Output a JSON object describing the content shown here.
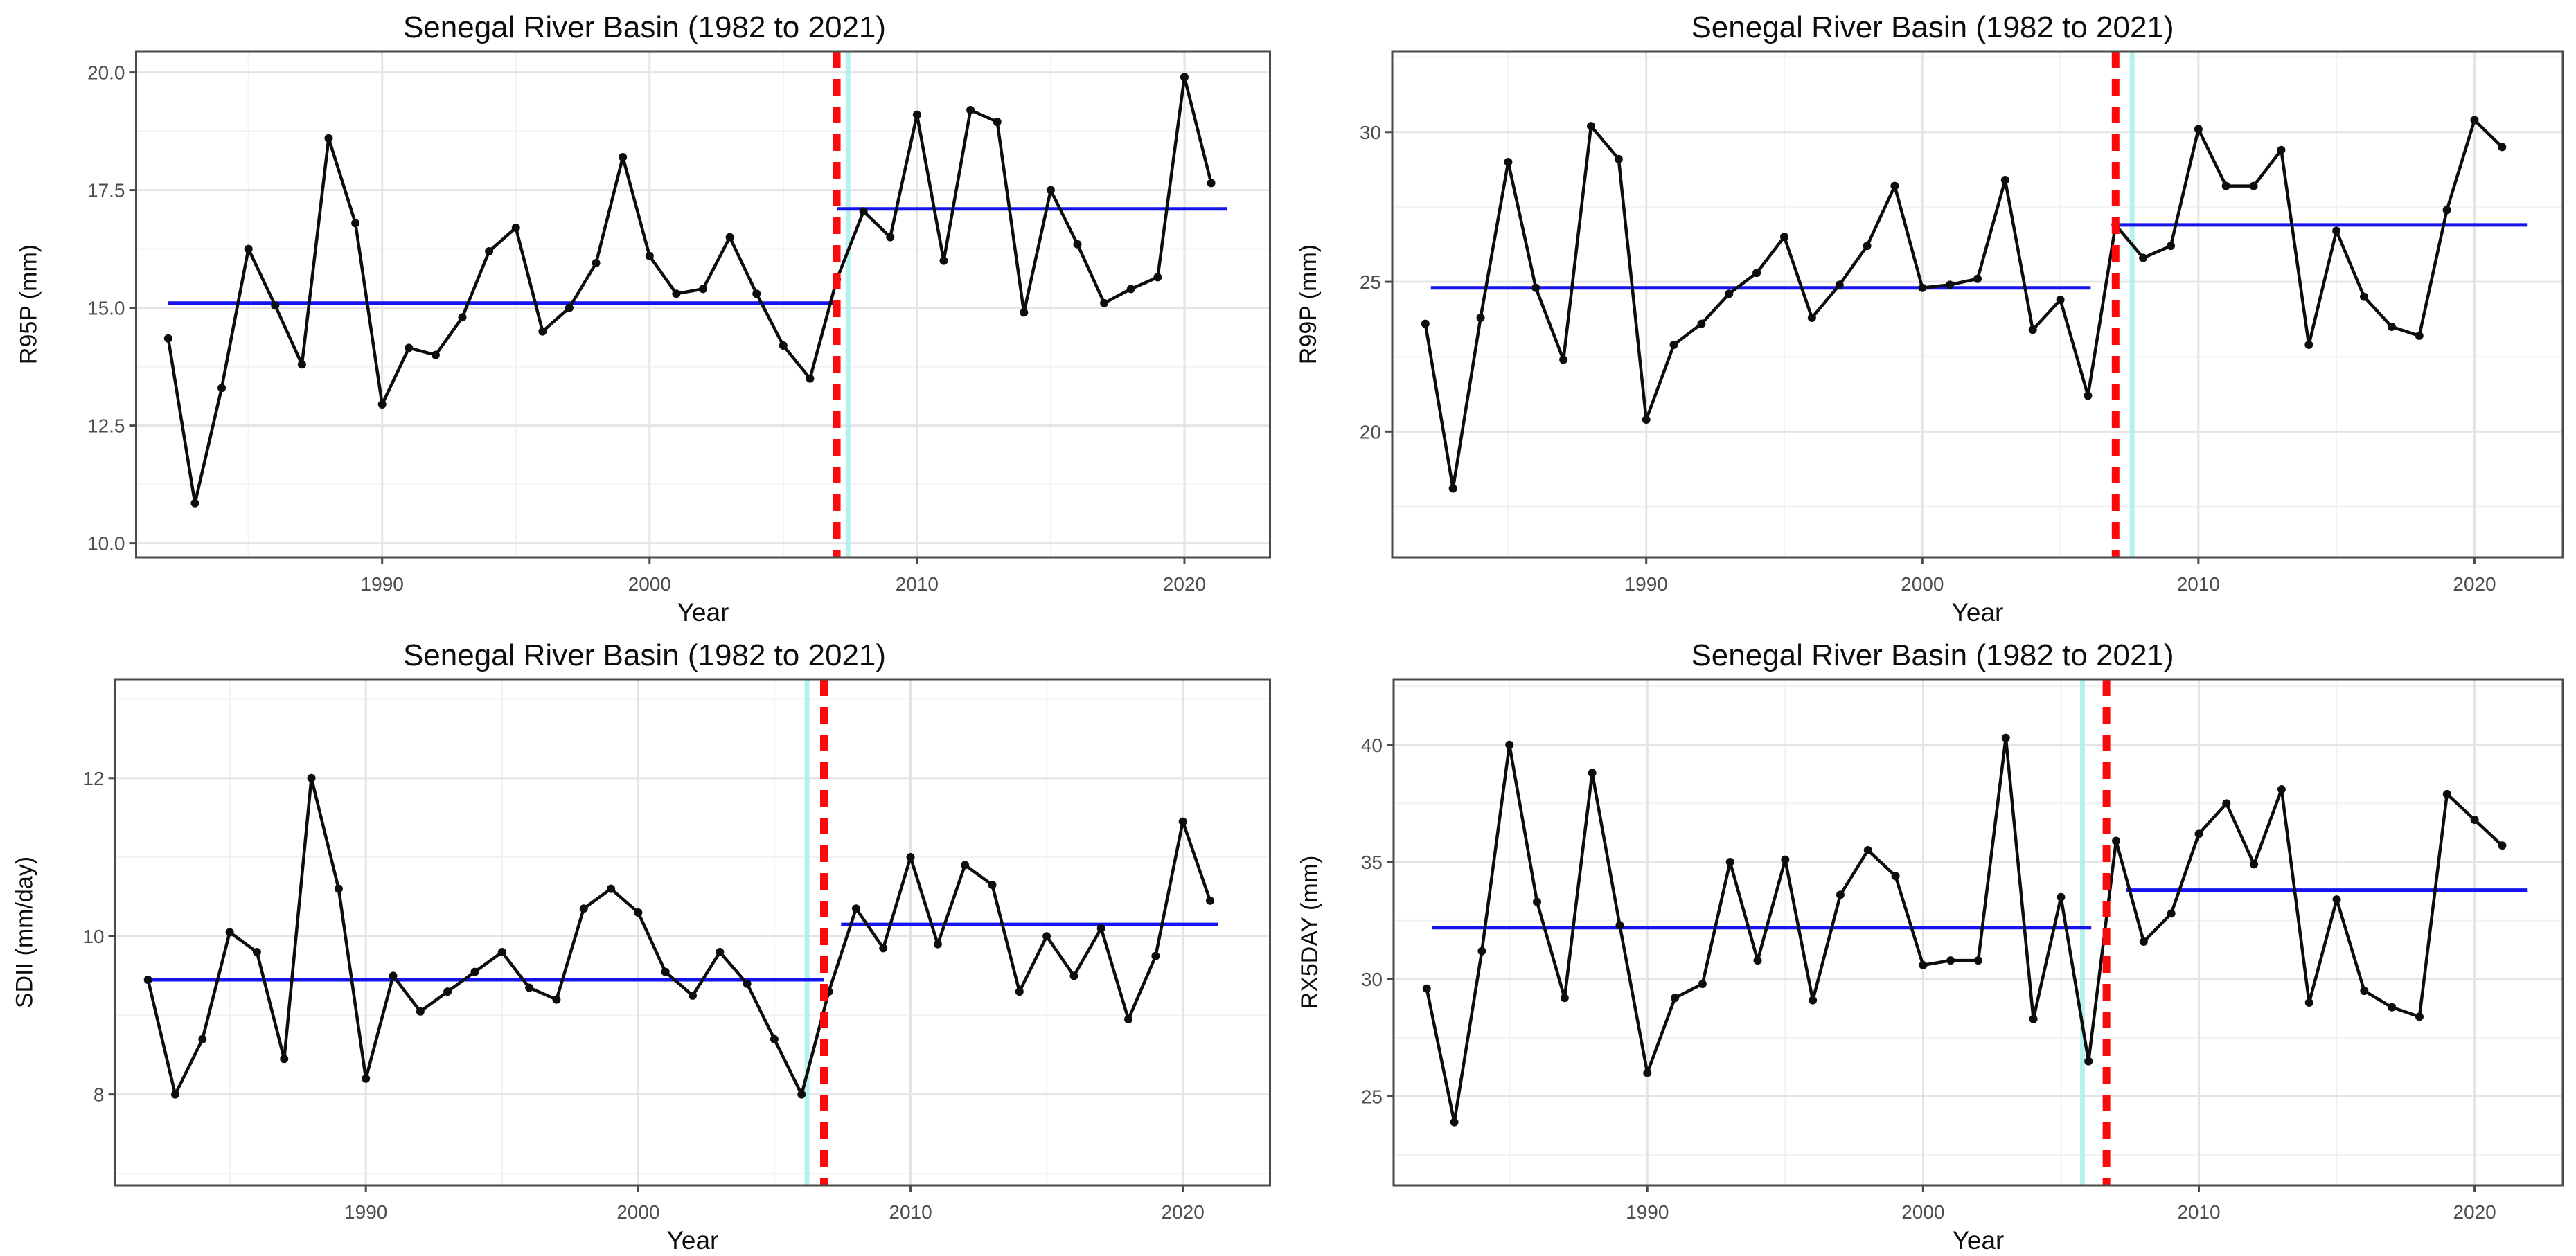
{
  "page": {
    "background": "#ffffff"
  },
  "style": {
    "panel_bg": "#ffffff",
    "panel_border": "#4a4a4a",
    "grid_major": "#e4e4e4",
    "grid_minor": "#f2f2f2",
    "series_color": "#0d0d0d",
    "mean_line_color": "#1414f0",
    "breakpoint_color": "#fa0a0a",
    "ci_color": "#aef0ec",
    "tick_label_color": "#4d4d4d"
  },
  "chart_data": [
    {
      "type": "line",
      "title": "Senegal River Basin (1982 to 2021)",
      "xlabel": "Year",
      "ylabel": "R95P (mm)",
      "x": [
        1982,
        1983,
        1984,
        1985,
        1986,
        1987,
        1988,
        1989,
        1990,
        1991,
        1992,
        1993,
        1994,
        1995,
        1996,
        1997,
        1998,
        1999,
        2000,
        2001,
        2002,
        2003,
        2004,
        2005,
        2006,
        2007,
        2008,
        2009,
        2010,
        2011,
        2012,
        2013,
        2014,
        2015,
        2016,
        2017,
        2018,
        2019,
        2020,
        2021
      ],
      "values": [
        14.35,
        10.85,
        13.3,
        16.25,
        15.05,
        13.8,
        18.6,
        16.8,
        12.95,
        14.15,
        14.0,
        14.8,
        16.2,
        16.7,
        14.5,
        15.0,
        15.95,
        18.2,
        16.1,
        15.3,
        15.4,
        16.5,
        15.3,
        14.2,
        13.5,
        15.6,
        17.05,
        16.5,
        19.1,
        16.0,
        19.2,
        18.95,
        14.9,
        17.5,
        16.35,
        15.1,
        15.4,
        15.65,
        19.9,
        17.65
      ],
      "xlim": [
        1980.8,
        2023.2
      ],
      "ylim": [
        9.7,
        20.45
      ],
      "xticks": {
        "values": [
          1990,
          2000,
          2010,
          2020
        ],
        "labels": [
          "1990",
          "2000",
          "2010",
          "2020"
        ]
      },
      "xminor": [
        1985,
        1995,
        2005,
        2015
      ],
      "yticks": {
        "values": [
          10.0,
          12.5,
          15.0,
          17.5,
          20.0
        ],
        "labels": [
          "10.0",
          "12.5",
          "15.0",
          "17.5",
          "20.0"
        ]
      },
      "yminor": [
        11.25,
        13.75,
        16.25,
        18.75
      ],
      "mean_lines": [
        {
          "value": 15.1,
          "from": 1982.0,
          "to": 2007.0
        },
        {
          "value": 17.1,
          "from": 2007.0,
          "to": 2021.6
        }
      ],
      "breakpoint_line": {
        "x": 2007.0
      },
      "ci_line": {
        "x": 2007.42
      }
    },
    {
      "type": "line",
      "title": "Senegal River Basin (1982 to 2021)",
      "xlabel": "Year",
      "ylabel": "R99P (mm)",
      "x": [
        1982,
        1983,
        1984,
        1985,
        1986,
        1987,
        1988,
        1989,
        1990,
        1991,
        1992,
        1993,
        1994,
        1995,
        1996,
        1997,
        1998,
        1999,
        2000,
        2001,
        2002,
        2003,
        2004,
        2005,
        2006,
        2007,
        2008,
        2009,
        2010,
        2011,
        2012,
        2013,
        2014,
        2015,
        2016,
        2017,
        2018,
        2019,
        2020,
        2021
      ],
      "values": [
        23.6,
        18.1,
        23.8,
        29.0,
        24.8,
        22.4,
        30.2,
        29.1,
        20.4,
        22.9,
        23.6,
        24.6,
        25.3,
        26.5,
        23.8,
        24.9,
        26.2,
        28.2,
        24.8,
        24.9,
        25.1,
        28.4,
        23.4,
        24.4,
        21.2,
        26.9,
        25.8,
        26.2,
        30.1,
        28.2,
        28.2,
        29.4,
        22.9,
        26.7,
        24.5,
        23.5,
        23.2,
        27.4,
        30.4,
        29.5
      ],
      "xlim": [
        1980.8,
        2023.2
      ],
      "ylim": [
        15.8,
        32.7
      ],
      "xticks": {
        "values": [
          1990,
          2000,
          2010,
          2020
        ],
        "labels": [
          "1990",
          "2000",
          "2010",
          "2020"
        ]
      },
      "xminor": [
        1985,
        1995,
        2005,
        2015
      ],
      "yticks": {
        "values": [
          20,
          25,
          30
        ],
        "labels": [
          "20",
          "25",
          "30"
        ]
      },
      "yminor": [
        17.5,
        22.5,
        27.5,
        32.5
      ],
      "mean_lines": [
        {
          "value": 24.8,
          "from": 1982.2,
          "to": 2006.1
        },
        {
          "value": 26.9,
          "from": 2007.0,
          "to": 2021.9
        }
      ],
      "breakpoint_line": {
        "x": 2007.0
      },
      "ci_line": {
        "x": 2007.6
      }
    },
    {
      "type": "line",
      "title": "Senegal River Basin (1982 to 2021)",
      "xlabel": "Year",
      "ylabel": "SDII (mm/day)",
      "x": [
        1982,
        1983,
        1984,
        1985,
        1986,
        1987,
        1988,
        1989,
        1990,
        1991,
        1992,
        1993,
        1994,
        1995,
        1996,
        1997,
        1998,
        1999,
        2000,
        2001,
        2002,
        2003,
        2004,
        2005,
        2006,
        2007,
        2008,
        2009,
        2010,
        2011,
        2012,
        2013,
        2014,
        2015,
        2016,
        2017,
        2018,
        2019,
        2020,
        2021
      ],
      "values": [
        9.45,
        8.0,
        8.7,
        10.05,
        9.8,
        8.45,
        12.0,
        10.6,
        8.2,
        9.5,
        9.05,
        9.3,
        9.55,
        9.8,
        9.35,
        9.2,
        10.35,
        10.6,
        10.3,
        9.55,
        9.25,
        9.8,
        9.4,
        8.7,
        8.0,
        9.3,
        10.35,
        9.85,
        11.0,
        9.9,
        10.9,
        10.65,
        9.3,
        10.0,
        9.5,
        10.1,
        8.95,
        9.75,
        11.45,
        10.45
      ],
      "xlim": [
        1980.8,
        2023.2
      ],
      "ylim": [
        6.85,
        13.25
      ],
      "xticks": {
        "values": [
          1990,
          2000,
          2010,
          2020
        ],
        "labels": [
          "1990",
          "2000",
          "2010",
          "2020"
        ]
      },
      "xminor": [
        1985,
        1995,
        2005,
        2015
      ],
      "yticks": {
        "values": [
          8,
          10,
          12
        ],
        "labels": [
          "8",
          "10",
          "12"
        ]
      },
      "yminor": [
        7,
        9,
        11,
        13
      ],
      "mean_lines": [
        {
          "value": 9.45,
          "from": 1982.0,
          "to": 2006.82
        },
        {
          "value": 10.15,
          "from": 2007.45,
          "to": 2021.3
        }
      ],
      "breakpoint_line": {
        "x": 2006.82
      },
      "ci_line": {
        "x": 2006.2
      }
    },
    {
      "type": "line",
      "title": "Senegal River Basin (1982 to 2021)",
      "xlabel": "Year",
      "ylabel": "RX5DAY (mm)",
      "x": [
        1982,
        1983,
        1984,
        1985,
        1986,
        1987,
        1988,
        1989,
        1990,
        1991,
        1992,
        1993,
        1994,
        1995,
        1996,
        1997,
        1998,
        1999,
        2000,
        2001,
        2002,
        2003,
        2004,
        2005,
        2006,
        2007,
        2008,
        2009,
        2010,
        2011,
        2012,
        2013,
        2014,
        2015,
        2016,
        2017,
        2018,
        2019,
        2020,
        2021
      ],
      "values": [
        29.6,
        23.9,
        31.2,
        40.0,
        33.3,
        29.2,
        38.8,
        32.3,
        26.0,
        29.2,
        29.8,
        35.0,
        30.8,
        35.1,
        29.1,
        33.6,
        35.5,
        34.4,
        30.6,
        30.8,
        30.8,
        40.3,
        28.3,
        33.5,
        26.5,
        35.9,
        31.6,
        32.8,
        36.2,
        37.5,
        34.9,
        38.1,
        29.0,
        33.4,
        29.5,
        28.8,
        28.4,
        37.9,
        36.8,
        35.7
      ],
      "xlim": [
        1980.8,
        2023.2
      ],
      "ylim": [
        21.2,
        42.8
      ],
      "xticks": {
        "values": [
          1990,
          2000,
          2010,
          2020
        ],
        "labels": [
          "1990",
          "2000",
          "2010",
          "2020"
        ]
      },
      "xminor": [
        1985,
        1995,
        2005,
        2015
      ],
      "yticks": {
        "values": [
          25,
          30,
          35,
          40
        ],
        "labels": [
          "25",
          "30",
          "35",
          "40"
        ]
      },
      "yminor": [
        22.5,
        27.5,
        32.5,
        37.5,
        42.5
      ],
      "mean_lines": [
        {
          "value": 32.2,
          "from": 1982.2,
          "to": 2006.1
        },
        {
          "value": 33.8,
          "from": 2007.35,
          "to": 2021.9
        }
      ],
      "breakpoint_line": {
        "x": 2006.65
      },
      "ci_line": {
        "x": 2005.78
      }
    }
  ]
}
